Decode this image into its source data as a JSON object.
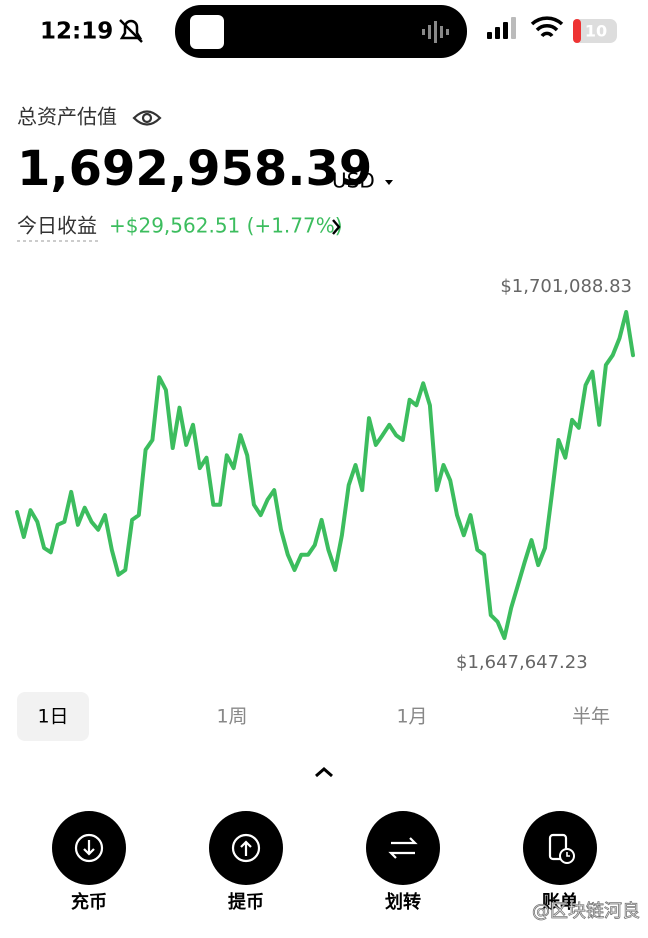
{
  "status_bar": {
    "time": "12:19",
    "battery": "10"
  },
  "header": {
    "title": "总资产估值",
    "balance": "1,692,958.39",
    "currency": "USD",
    "pnl_label": "今日收益",
    "pnl_value": "+$29,562.51 (+1.77%)"
  },
  "chart_data": {
    "type": "line",
    "color": "#3cbd5e",
    "ylim": [
      1647647.23,
      1701088.83
    ],
    "max_label": "$1,701,088.83",
    "min_label": "$1,647,647.23",
    "values": [
      1668300,
      1664200,
      1668600,
      1666700,
      1662400,
      1661700,
      1666200,
      1666700,
      1671600,
      1666200,
      1669000,
      1666700,
      1665400,
      1667800,
      1662100,
      1658000,
      1658800,
      1667000,
      1667800,
      1678500,
      1680100,
      1690400,
      1688300,
      1678800,
      1685400,
      1679300,
      1682600,
      1675500,
      1677200,
      1669500,
      1669500,
      1677600,
      1675500,
      1680900,
      1677600,
      1669500,
      1667800,
      1670300,
      1671900,
      1665400,
      1661300,
      1658800,
      1661300,
      1661300,
      1662900,
      1667000,
      1662100,
      1658800,
      1664500,
      1672700,
      1676000,
      1671900,
      1683700,
      1679300,
      1680900,
      1682600,
      1680900,
      1680100,
      1686700,
      1685800,
      1689400,
      1685800,
      1671900,
      1676000,
      1673500,
      1667800,
      1664500,
      1667800,
      1662100,
      1661300,
      1651400,
      1650300,
      1647647.23,
      1652600,
      1656300,
      1660100,
      1663700,
      1659600,
      1662400,
      1671100,
      1680100,
      1677200,
      1683400,
      1682100,
      1689100,
      1691300,
      1682600,
      1692400,
      1694000,
      1696800,
      1701088.83,
      1694000
    ]
  },
  "tabs": [
    "1日",
    "1周",
    "1月",
    "半年"
  ],
  "actions": [
    "充币",
    "提币",
    "划转",
    "账单"
  ],
  "watermark": "@区块链河良"
}
